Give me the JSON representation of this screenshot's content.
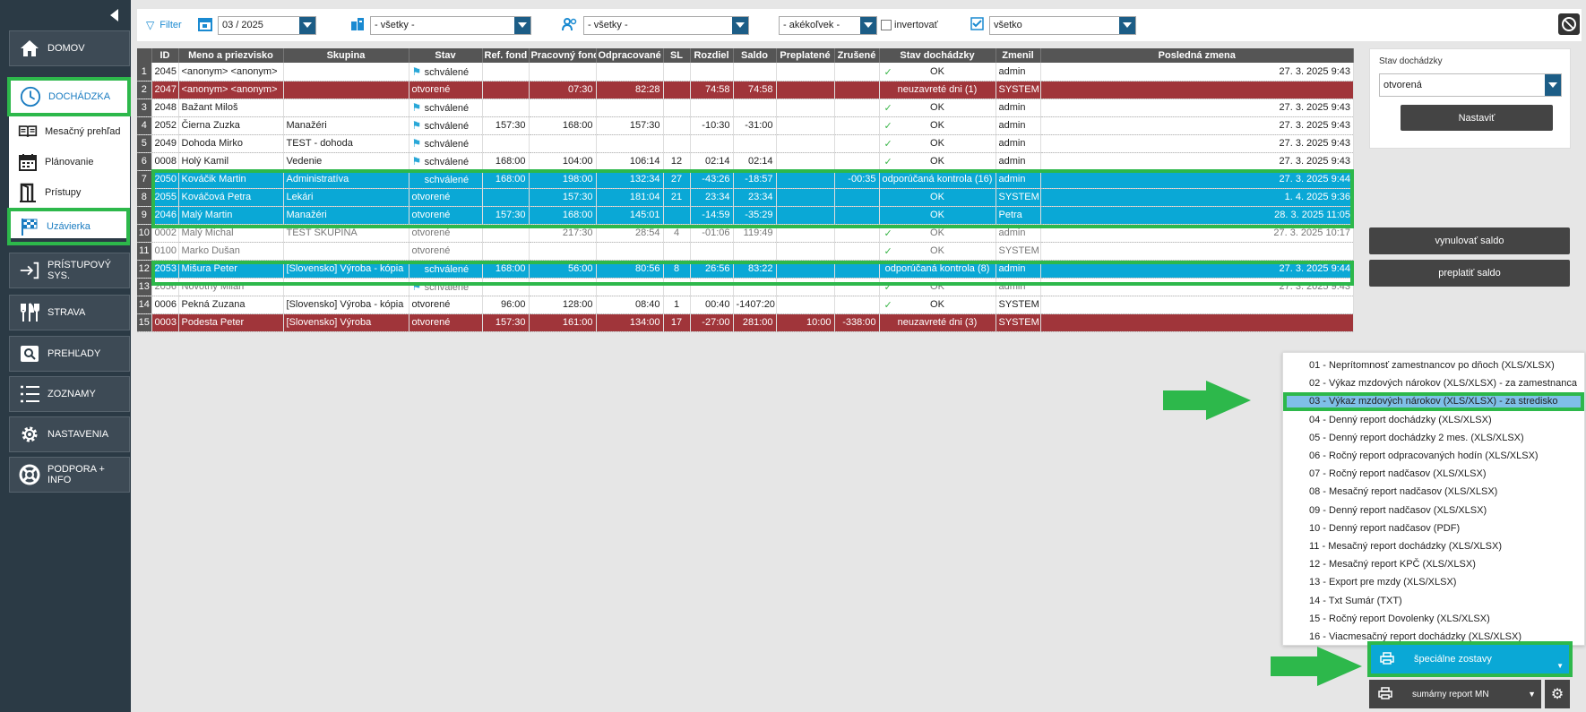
{
  "sidebar": {
    "items": [
      {
        "label": "DOMOV",
        "icon": "home-icon"
      },
      {
        "label": "DOCHÁDZKA",
        "icon": "clock-icon"
      },
      {
        "label": "PRÍSTUPOVÝ SYS.",
        "icon": "login-icon"
      },
      {
        "label": "STRAVA",
        "icon": "cutlery-icon"
      },
      {
        "label": "PREHĽADY",
        "icon": "search-icon"
      },
      {
        "label": "ZOZNAMY",
        "icon": "list-icon"
      },
      {
        "label": "NASTAVENIA",
        "icon": "gear-icon"
      },
      {
        "label": "PODPORA + INFO",
        "icon": "lifebuoy-icon"
      }
    ],
    "subitems": [
      {
        "label": "Mesačný prehľad",
        "icon": "book-icon"
      },
      {
        "label": "Plánovanie",
        "icon": "calendar-icon"
      },
      {
        "label": "Prístupy",
        "icon": "door-icon"
      },
      {
        "label": "Uzávierka",
        "icon": "checkered-flag-icon"
      }
    ]
  },
  "filter": {
    "label": "Filter",
    "month": "03 / 2025",
    "group": "- všetky -",
    "people": "- všetky -",
    "status": "- akékoľvek -",
    "invert_label": "invertovať",
    "all": "všetko"
  },
  "table": {
    "headers": [
      "ID",
      "Meno a priezvisko",
      "Skupina",
      "Stav",
      "Ref. fond",
      "Pracovný fond",
      "Odpracované",
      "SL",
      "Rozdiel",
      "Saldo",
      "Preplatené",
      "Zrušené",
      "Stav dochádzky",
      "Zmenil",
      "Posledná zmena"
    ],
    "rows": [
      {
        "n": "1",
        "style": "white",
        "id": "2045",
        "name": "<anonym> <anonym>",
        "group": "",
        "stav": "schválené",
        "flag": true,
        "ref": "",
        "prac": "",
        "odpr": "",
        "sl": "",
        "rozdiel": "",
        "saldo": "",
        "prep": "",
        "zrus": "",
        "check": true,
        "stavd": "OK",
        "zmenil": "admin",
        "posl": "27. 3. 2025 9:43"
      },
      {
        "n": "2",
        "style": "red",
        "id": "2047",
        "name": "<anonym> <anonym>",
        "group": "",
        "stav": "otvorené",
        "flag": false,
        "ref": "",
        "prac": "07:30",
        "odpr": "82:28",
        "sl": "",
        "rozdiel": "74:58",
        "saldo": "74:58",
        "prep": "",
        "zrus": "",
        "check": false,
        "stavd": "neuzavreté dni (1)",
        "zmenil": "SYSTEM",
        "posl": ""
      },
      {
        "n": "3",
        "style": "white",
        "id": "2048",
        "name": "Bažant Miloš",
        "group": "",
        "stav": "schválené",
        "flag": true,
        "ref": "",
        "prac": "",
        "odpr": "",
        "sl": "",
        "rozdiel": "",
        "saldo": "",
        "prep": "",
        "zrus": "",
        "check": true,
        "stavd": "OK",
        "zmenil": "admin",
        "posl": "27. 3. 2025 9:43"
      },
      {
        "n": "4",
        "style": "white",
        "id": "2052",
        "name": "Čierna Zuzka",
        "group": "Manažéri",
        "stav": "schválené",
        "flag": true,
        "ref": "157:30",
        "prac": "168:00",
        "odpr": "157:30",
        "sl": "",
        "rozdiel": "-10:30",
        "saldo": "-31:00",
        "prep": "",
        "zrus": "",
        "check": true,
        "stavd": "OK",
        "zmenil": "admin",
        "posl": "27. 3. 2025 9:43"
      },
      {
        "n": "5",
        "style": "white",
        "id": "2049",
        "name": "Dohoda Mirko",
        "group": "TEST - dohoda",
        "stav": "schválené",
        "flag": true,
        "ref": "",
        "prac": "",
        "odpr": "",
        "sl": "",
        "rozdiel": "",
        "saldo": "",
        "prep": "",
        "zrus": "",
        "check": true,
        "stavd": "OK",
        "zmenil": "admin",
        "posl": "27. 3. 2025 9:43"
      },
      {
        "n": "6",
        "style": "white",
        "id": "0008",
        "name": "Holý Kamil",
        "group": "Vedenie",
        "stav": "schválené",
        "flag": true,
        "ref": "168:00",
        "prac": "104:00",
        "odpr": "106:14",
        "sl": "12",
        "rozdiel": "02:14",
        "saldo": "02:14",
        "prep": "",
        "zrus": "",
        "check": true,
        "stavd": "OK",
        "zmenil": "admin",
        "posl": "27. 3. 2025 9:43"
      },
      {
        "n": "7",
        "style": "blue",
        "id": "2050",
        "name": "Kováčik Martin",
        "group": "Administratíva",
        "stav": "schválené",
        "flag": true,
        "ref": "168:00",
        "prac": "198:00",
        "odpr": "132:34",
        "sl": "27",
        "rozdiel": "-43:26",
        "saldo": "-18:57",
        "prep": "",
        "zrus": "-00:35",
        "check": false,
        "stavd": "odporúčaná kontrola (16)",
        "zmenil": "admin",
        "posl": "27. 3. 2025 9:44"
      },
      {
        "n": "8",
        "style": "blue",
        "id": "2055",
        "name": "Kováčová Petra",
        "group": "Lekári",
        "stav": "otvorené",
        "flag": false,
        "ref": "",
        "prac": "157:30",
        "odpr": "181:04",
        "sl": "21",
        "rozdiel": "23:34",
        "saldo": "23:34",
        "prep": "",
        "zrus": "",
        "check": false,
        "stavd": "OK",
        "zmenil": "SYSTEM",
        "posl": "1. 4. 2025 9:36"
      },
      {
        "n": "9",
        "style": "blue",
        "id": "2046",
        "name": "Malý Martin",
        "group": "Manažéri",
        "stav": "otvorené",
        "flag": false,
        "ref": "157:30",
        "prac": "168:00",
        "odpr": "145:01",
        "sl": "",
        "rozdiel": "-14:59",
        "saldo": "-35:29",
        "prep": "",
        "zrus": "",
        "check": false,
        "stavd": "OK",
        "zmenil": "Petra",
        "posl": "28. 3. 2025 11:05"
      },
      {
        "n": "10",
        "style": "gray",
        "id": "0002",
        "name": "Malý Michal",
        "group": "TEST SKUPINA",
        "stav": "otvorené",
        "flag": false,
        "ref": "",
        "prac": "217:30",
        "odpr": "28:54",
        "sl": "4",
        "rozdiel": "-01:06",
        "saldo": "119:49",
        "prep": "",
        "zrus": "",
        "check": true,
        "stavd": "OK",
        "zmenil": "admin",
        "posl": "27. 3. 2025 10:17"
      },
      {
        "n": "11",
        "style": "gray",
        "id": "0100",
        "name": "Marko Dušan",
        "group": "",
        "stav": "otvorené",
        "flag": false,
        "ref": "",
        "prac": "",
        "odpr": "",
        "sl": "",
        "rozdiel": "",
        "saldo": "",
        "prep": "",
        "zrus": "",
        "check": true,
        "stavd": "OK",
        "zmenil": "SYSTEM",
        "posl": ""
      },
      {
        "n": "12",
        "style": "blue",
        "id": "2053",
        "name": "Mišura Peter",
        "group": "[Slovensko] Výroba - kópia",
        "stav": "schválené",
        "flag": true,
        "ref": "168:00",
        "prac": "56:00",
        "odpr": "80:56",
        "sl": "8",
        "rozdiel": "26:56",
        "saldo": "83:22",
        "prep": "",
        "zrus": "",
        "check": false,
        "stavd": "odporúčaná kontrola (8)",
        "zmenil": "admin",
        "posl": "27. 3. 2025 9:44"
      },
      {
        "n": "13",
        "style": "gray",
        "id": "2056",
        "name": "Novotný Milan",
        "group": "",
        "stav": "schválené",
        "flag": true,
        "ref": "",
        "prac": "",
        "odpr": "",
        "sl": "",
        "rozdiel": "",
        "saldo": "",
        "prep": "",
        "zrus": "",
        "check": true,
        "stavd": "OK",
        "zmenil": "admin",
        "posl": "27. 3. 2025 9:43"
      },
      {
        "n": "14",
        "style": "white",
        "id": "0006",
        "name": "Pekná Zuzana",
        "group": "[Slovensko] Výroba - kópia",
        "stav": "otvorené",
        "flag": false,
        "ref": "96:00",
        "prac": "128:00",
        "odpr": "08:40",
        "sl": "1",
        "rozdiel": "00:40",
        "saldo": "-1407:20",
        "prep": "",
        "zrus": "",
        "check": true,
        "stavd": "OK",
        "zmenil": "SYSTEM",
        "posl": ""
      },
      {
        "n": "15",
        "style": "red",
        "id": "0003",
        "name": "Podesta Peter",
        "group": "[Slovensko] Výroba",
        "stav": "otvorené",
        "flag": false,
        "ref": "157:30",
        "prac": "161:00",
        "odpr": "134:00",
        "sl": "17",
        "rozdiel": "-27:00",
        "saldo": "281:00",
        "prep": "10:00",
        "zrus": "-338:00",
        "check": false,
        "stavd": "neuzavreté dni (3)",
        "zmenil": "SYSTEM",
        "posl": ""
      }
    ]
  },
  "stav_panel": {
    "label": "Stav dochádzky",
    "value": "otvorená",
    "button": "Nastaviť"
  },
  "actions": {
    "reset": "vynulovať saldo",
    "pay": "preplatiť saldo"
  },
  "reports": [
    "01 - Neprítomnosť zamestnancov po dňoch (XLS/XLSX)",
    "02 - Výkaz mzdových nárokov (XLS/XLSX) - za zamestnanca",
    "03 - Výkaz mzdových nárokov (XLS/XLSX) - za stredisko",
    "04 - Denný report dochádzky (XLS/XLSX)",
    "05 - Denný report dochádzky 2 mes. (XLS/XLSX)",
    "06 - Ročný report odpracovaných hodín (XLS/XLSX)",
    "07 - Ročný report nadčasov (XLS/XLSX)",
    "08 - Mesačný report nadčasov (XLS/XLSX)",
    "09 - Denný report nadčasov (XLS/XLSX)",
    "10 - Denný report nadčasov (PDF)",
    "11 - Mesačný report dochádzky (XLS/XLSX)",
    "12 - Mesačný report KPČ (XLS/XLSX)",
    "13 - Export pre mzdy (XLS/XLSX)",
    "14 - Txt Sumár (TXT)",
    "15 - Ročný report Dovolenky (XLS/XLSX)",
    "16 - Viacmesačný report dochádzky (XLS/XLSX)"
  ],
  "special_reports_label": "špeciálne zostavy",
  "summary_report_label": "sumárny report MN",
  "colors": {
    "sidebar": "#2b3a45",
    "highlight_green": "#2db84b",
    "row_blue": "#0aa8d6",
    "row_red": "#a0353a",
    "accent": "#1a8ad1"
  }
}
